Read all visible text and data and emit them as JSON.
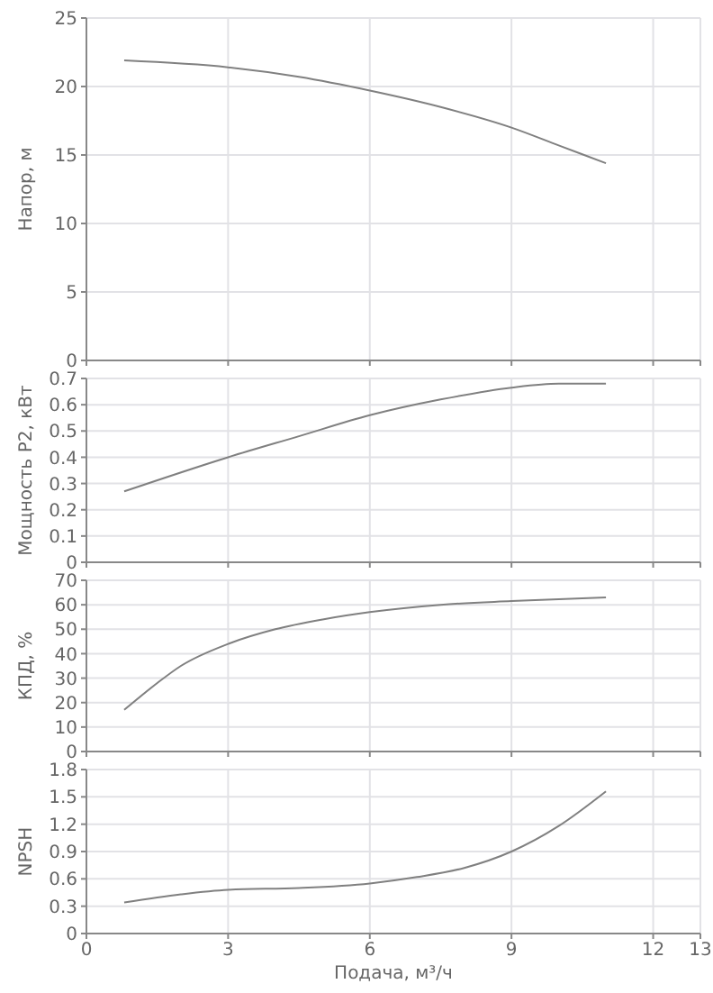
{
  "chart_data": [
    {
      "type": "line",
      "ylabel": "Напор, м",
      "x": [
        0.8,
        3,
        4.5,
        6,
        7.5,
        9,
        10,
        11
      ],
      "values": [
        21.9,
        21.4,
        20.7,
        19.7,
        18.5,
        17,
        15.7,
        14.4
      ],
      "color": "#808080",
      "xlim": [
        0,
        13
      ],
      "xticks": [
        0,
        3,
        6,
        9,
        12,
        13
      ],
      "ylim": [
        0,
        25
      ],
      "yticks": [
        0,
        5,
        10,
        15,
        20,
        25
      ],
      "grid": true,
      "tick_labels": "y"
    },
    {
      "type": "line",
      "ylabel": "Мощность P2, кВт",
      "x": [
        0.8,
        3,
        4.5,
        6,
        7.5,
        9,
        10,
        11
      ],
      "values": [
        0.27,
        0.4,
        0.48,
        0.56,
        0.62,
        0.665,
        0.68,
        0.68
      ],
      "color": "#808080",
      "xlim": [
        0,
        13
      ],
      "xticks": [
        0,
        3,
        6,
        9,
        12,
        13
      ],
      "ylim": [
        0,
        0.7
      ],
      "yticks": [
        0,
        0.1,
        0.2,
        0.3,
        0.4,
        0.5,
        0.6,
        0.7
      ],
      "grid": true,
      "tick_labels": "y"
    },
    {
      "type": "line",
      "ylabel": "КПД, %",
      "x": [
        0.8,
        1.5,
        2,
        3,
        4,
        5,
        6,
        7.5,
        9,
        11
      ],
      "values": [
        17,
        28,
        35,
        44,
        50,
        54,
        57,
        60,
        61.5,
        63
      ],
      "color": "#808080",
      "xlim": [
        0,
        13
      ],
      "xticks": [
        0,
        3,
        6,
        9,
        12,
        13
      ],
      "ylim": [
        0,
        70
      ],
      "yticks": [
        0,
        10,
        20,
        30,
        40,
        50,
        60,
        70
      ],
      "grid": true,
      "tick_labels": "y"
    },
    {
      "type": "line",
      "xlabel": "Подача, м³/ч",
      "ylabel": "NPSH",
      "x": [
        0.8,
        2,
        3,
        4.5,
        6,
        7,
        8,
        9,
        10,
        11
      ],
      "values": [
        0.34,
        0.43,
        0.48,
        0.5,
        0.55,
        0.62,
        0.72,
        0.9,
        1.18,
        1.56
      ],
      "color": "#808080",
      "xlim": [
        0,
        13
      ],
      "xticks": [
        0,
        3,
        6,
        9,
        12,
        13
      ],
      "ylim": [
        0,
        1.8
      ],
      "yticks": [
        0,
        0.3,
        0.6,
        0.9,
        1.2,
        1.5,
        1.8
      ],
      "grid": true
    }
  ]
}
